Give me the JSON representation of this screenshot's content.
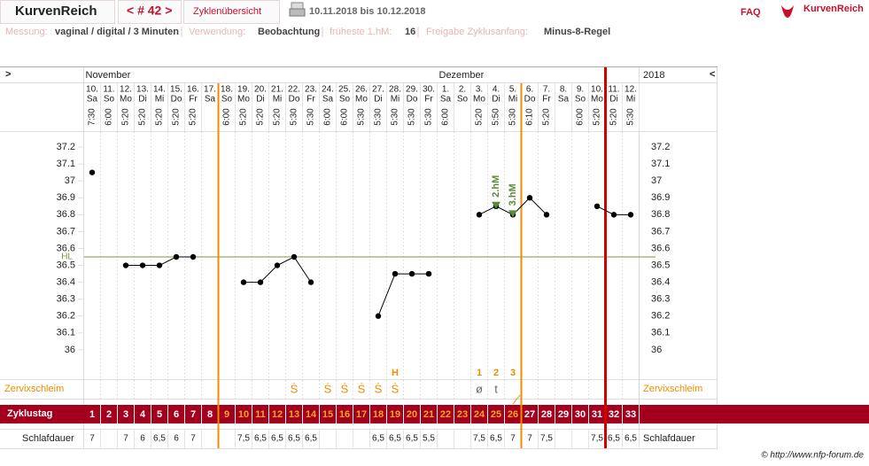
{
  "header": {
    "title": "KurvenReich",
    "cycle_nav": "< # 42 >",
    "overview": "Zyklenübersicht",
    "range": "10.11.2018 bis 10.12.2018",
    "faq": "FAQ",
    "logo": "KurvenReich"
  },
  "info": [
    {
      "label": "Messung:",
      "value": "vaginal / digital / 3 Minuten"
    },
    {
      "label": "Verwendung:",
      "value": "Beobachtung"
    },
    {
      "label": "früheste 1.hM:",
      "value": "16"
    },
    {
      "label": "Freigabe Zyklusanfang:",
      "value": "Minus-8-Regel"
    }
  ],
  "nav": {
    "left": ">",
    "right": "<",
    "year": "2018"
  },
  "footer": "© http://www.nfp-forum.de",
  "chart_data": {
    "type": "line",
    "months": [
      "November",
      null,
      null,
      null,
      null,
      null,
      null,
      null,
      null,
      null,
      null,
      null,
      null,
      null,
      null,
      null,
      null,
      null,
      null,
      null,
      null,
      "Dezember",
      null,
      null,
      null,
      null,
      null,
      null,
      null,
      null,
      null,
      null,
      null
    ],
    "days": [
      "10.",
      "11.",
      "12.",
      "13.",
      "14.",
      "15.",
      "16.",
      "17.",
      "18.",
      "19.",
      "20.",
      "21.",
      "22.",
      "23.",
      "24.",
      "25.",
      "26.",
      "27.",
      "28.",
      "29.",
      "30.",
      "1.",
      "2.",
      "3.",
      "4.",
      "5.",
      "6.",
      "7.",
      "8.",
      "9.",
      "10.",
      "11.",
      "12."
    ],
    "weekdays": [
      "Sa",
      "So",
      "Mo",
      "Di",
      "Mi",
      "Do",
      "Fr",
      "Sa",
      "So",
      "Mo",
      "Di",
      "Mi",
      "Do",
      "Fr",
      "Sa",
      "So",
      "Mo",
      "Di",
      "Mi",
      "Do",
      "Fr",
      "Sa",
      "So",
      "Mo",
      "Di",
      "Mi",
      "Do",
      "Fr",
      "Sa",
      "So",
      "Mo",
      "Di",
      "Mi"
    ],
    "times": [
      "7:30",
      "6:00",
      "5:20",
      "5:20",
      "5:20",
      "5:20",
      "5:20",
      null,
      "6:00",
      "5:20",
      "5:20",
      "5:20",
      "5:30",
      "5:30",
      "6:00",
      "6:00",
      "5:30",
      "5:30",
      "5:30",
      "5:30",
      "5:30",
      "6:00",
      null,
      "5:20",
      "5:50",
      "5:30",
      "6:10",
      "5:20",
      null,
      "6:00",
      "5:20",
      "5:20",
      "5:30"
    ],
    "values": [
      37.05,
      null,
      36.5,
      36.5,
      36.5,
      36.55,
      36.55,
      null,
      null,
      36.4,
      36.4,
      36.5,
      36.55,
      36.4,
      null,
      null,
      null,
      36.2,
      36.45,
      36.45,
      36.45,
      null,
      null,
      36.8,
      36.85,
      36.8,
      36.9,
      36.8,
      null,
      null,
      36.85,
      36.8,
      36.8
    ],
    "color": "#000000",
    "ylim": [
      35.8,
      37.3
    ],
    "yticks": [
      36,
      36.1,
      36.2,
      36.3,
      36.4,
      36.5,
      36.6,
      36.7,
      36.8,
      36.9,
      37,
      37.1,
      37.2
    ],
    "grid": true,
    "hl": {
      "label": "HL",
      "value": 36.55,
      "color": "#7a9a40"
    },
    "hm_markers": [
      null,
      null,
      null,
      null,
      null,
      null,
      null,
      null,
      null,
      null,
      null,
      null,
      null,
      null,
      null,
      null,
      null,
      null,
      null,
      null,
      null,
      null,
      null,
      null,
      "2.hM",
      "3.hM",
      null,
      null,
      null,
      null,
      null,
      null,
      null
    ],
    "hm_color": "#5a8a3a",
    "phase_lines": [
      {
        "after_day": 8,
        "color": "#f08c00",
        "bold": false
      },
      {
        "after_day": 26,
        "color": "#f08c00",
        "bold": false
      },
      {
        "after_day": 31,
        "color": "#d40000",
        "bold": true
      }
    ],
    "cervix": {
      "label": "Zervixschleim",
      "color": "#f08c00",
      "top": [
        null,
        null,
        null,
        null,
        null,
        null,
        null,
        null,
        null,
        null,
        null,
        null,
        null,
        null,
        null,
        null,
        null,
        null,
        "H",
        null,
        null,
        null,
        null,
        "1",
        "2",
        "3",
        null,
        null,
        null,
        null,
        null,
        null,
        null
      ],
      "symbols": [
        null,
        null,
        null,
        null,
        null,
        null,
        null,
        null,
        null,
        null,
        null,
        null,
        "Ṡ",
        null,
        "Ṡ",
        "Ṡ",
        "Ṡ",
        "Ṡ",
        "Ṡ",
        null,
        null,
        null,
        null,
        "ø",
        "t",
        null,
        null,
        null,
        null,
        null,
        null,
        null,
        null
      ]
    },
    "cycle_day": {
      "label": "Zyklustag",
      "values": [
        1,
        2,
        3,
        4,
        5,
        6,
        7,
        8,
        9,
        10,
        11,
        12,
        13,
        14,
        15,
        16,
        17,
        18,
        19,
        20,
        21,
        22,
        23,
        24,
        25,
        26,
        27,
        28,
        29,
        30,
        31,
        32,
        33
      ],
      "highlight": {
        "from": 9,
        "to": 26,
        "color": "#f5a623"
      }
    },
    "sleep": {
      "label": "Schlafdauer",
      "values": [
        "7",
        null,
        "7",
        "6",
        "6,5",
        "6",
        "7",
        null,
        null,
        "7,5",
        "6,5",
        "6,5",
        "6,5",
        "6,5",
        null,
        null,
        null,
        "6,5",
        "6,5",
        "6,5",
        "5,5",
        null,
        null,
        "7,5",
        "6,5",
        "7",
        "7",
        "7,5",
        null,
        null,
        "7,5",
        "6,5",
        "6,5"
      ]
    }
  }
}
